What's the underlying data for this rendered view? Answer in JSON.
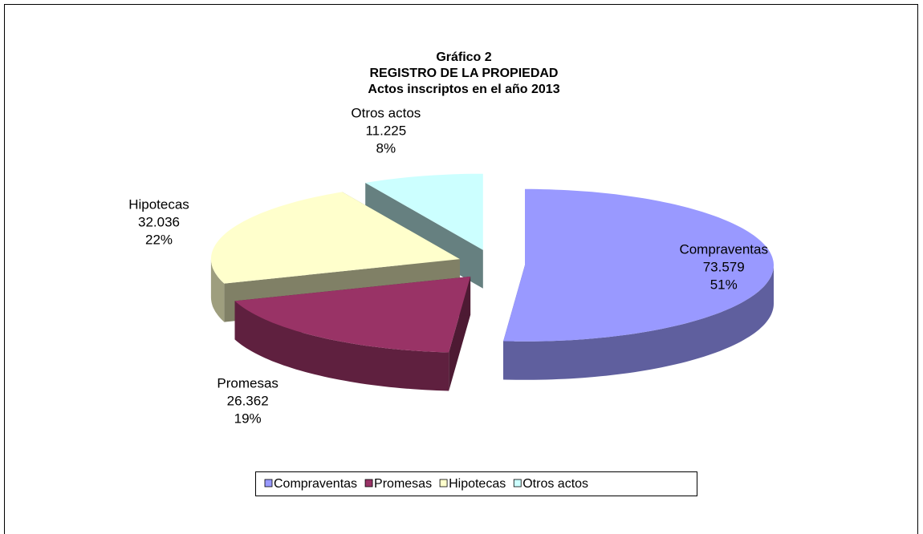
{
  "chart_data": {
    "type": "pie3d",
    "title": [
      "Gráfico 2",
      "REGISTRO DE LA PROPIEDAD",
      "Actos inscriptos en el año 2013"
    ],
    "categories": [
      "Compraventas",
      "Promesas",
      "Hipotecas",
      "Otros actos"
    ],
    "values": [
      73579,
      26362,
      32036,
      11225
    ],
    "value_labels": [
      "73.579",
      "26.362",
      "32.036",
      "11.225"
    ],
    "percent_labels": [
      "51%",
      "19%",
      "22%",
      "8%"
    ],
    "colors": [
      "#9999ff",
      "#993366",
      "#ffffcc",
      "#ccffff"
    ],
    "legend": "bottom"
  }
}
